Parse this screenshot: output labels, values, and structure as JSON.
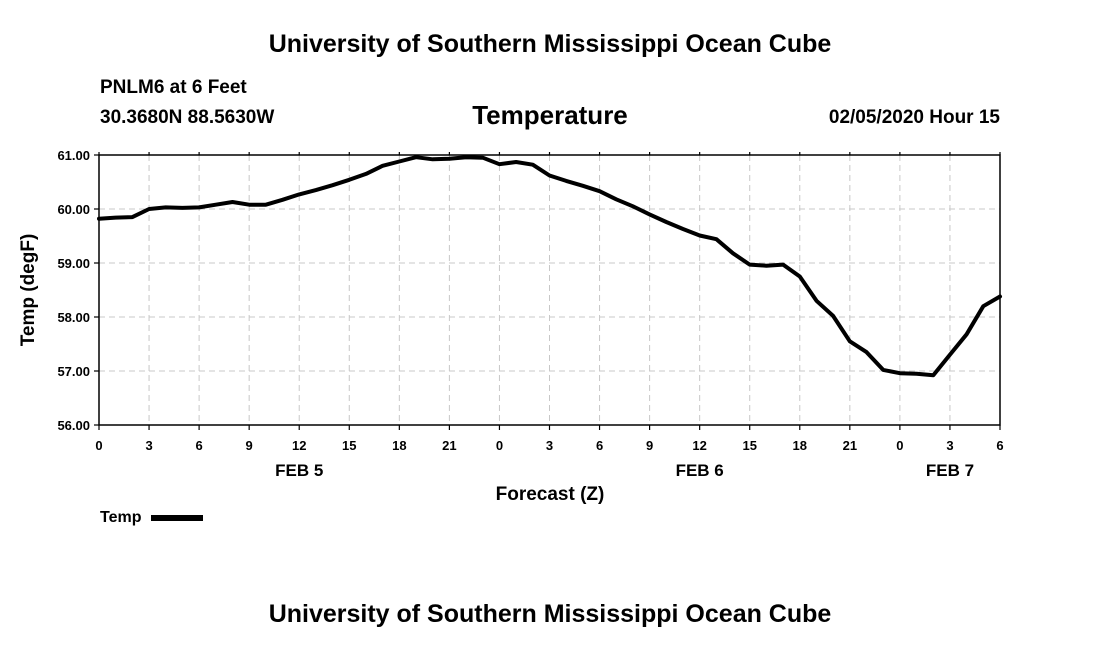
{
  "header": {
    "top_title": "University of Southern Mississippi Ocean Cube",
    "bottom_title": "University of Southern Mississippi Ocean Cube",
    "station": "PNLM6 at 6 Feet",
    "location": "30.3680N 88.5630W",
    "timestamp": "02/05/2020 Hour 15"
  },
  "legend": {
    "label": "Temp"
  },
  "chart_data": {
    "type": "line",
    "title": "Temperature",
    "xlabel": "Forecast (Z)",
    "ylabel": "Temp (degF)",
    "ylim": [
      56.0,
      61.0
    ],
    "xlim": [
      0,
      54
    ],
    "grid": true,
    "legend_position": "bottom-left",
    "y_ticks": [
      {
        "value": 56,
        "label": "56.00"
      },
      {
        "value": 57,
        "label": "57.00"
      },
      {
        "value": 58,
        "label": "58.00"
      },
      {
        "value": 59,
        "label": "59.00"
      },
      {
        "value": 60,
        "label": "60.00"
      },
      {
        "value": 61,
        "label": "61.00"
      }
    ],
    "x_ticks": [
      {
        "hour": 0,
        "label": "0"
      },
      {
        "hour": 3,
        "label": "3"
      },
      {
        "hour": 6,
        "label": "6"
      },
      {
        "hour": 9,
        "label": "9"
      },
      {
        "hour": 12,
        "label": "12"
      },
      {
        "hour": 15,
        "label": "15"
      },
      {
        "hour": 18,
        "label": "18"
      },
      {
        "hour": 21,
        "label": "21"
      },
      {
        "hour": 24,
        "label": "0"
      },
      {
        "hour": 27,
        "label": "3"
      },
      {
        "hour": 30,
        "label": "6"
      },
      {
        "hour": 33,
        "label": "9"
      },
      {
        "hour": 36,
        "label": "12"
      },
      {
        "hour": 39,
        "label": "15"
      },
      {
        "hour": 42,
        "label": "18"
      },
      {
        "hour": 45,
        "label": "21"
      },
      {
        "hour": 48,
        "label": "0"
      },
      {
        "hour": 51,
        "label": "3"
      },
      {
        "hour": 54,
        "label": "6"
      }
    ],
    "date_labels": [
      {
        "hour": 12,
        "label": "FEB 5"
      },
      {
        "hour": 36,
        "label": "FEB 6"
      },
      {
        "hour": 51,
        "label": "FEB 7"
      }
    ],
    "series": [
      {
        "name": "Temp",
        "color": "#000000",
        "x": [
          0,
          1,
          2,
          3,
          4,
          5,
          6,
          7,
          8,
          9,
          10,
          11,
          12,
          13,
          14,
          15,
          16,
          17,
          18,
          19,
          20,
          21,
          22,
          23,
          24,
          25,
          26,
          27,
          28,
          29,
          30,
          31,
          32,
          33,
          34,
          35,
          36,
          37,
          38,
          39,
          40,
          41,
          42,
          43,
          44,
          45,
          46,
          47,
          48,
          49,
          50,
          51,
          52,
          53,
          54
        ],
        "values": [
          59.82,
          59.84,
          59.85,
          60.0,
          60.03,
          60.02,
          60.03,
          60.08,
          60.13,
          60.08,
          60.08,
          60.17,
          60.27,
          60.35,
          60.44,
          60.54,
          60.65,
          60.8,
          60.88,
          60.96,
          60.92,
          60.93,
          60.96,
          60.95,
          60.83,
          60.87,
          60.82,
          60.62,
          60.52,
          60.43,
          60.33,
          60.18,
          60.05,
          59.9,
          59.76,
          59.63,
          59.51,
          59.44,
          59.18,
          58.97,
          58.95,
          58.97,
          58.75,
          58.3,
          58.02,
          57.55,
          57.35,
          57.02,
          56.96,
          56.95,
          56.92,
          57.3,
          57.68,
          58.2,
          58.38
        ]
      }
    ]
  }
}
